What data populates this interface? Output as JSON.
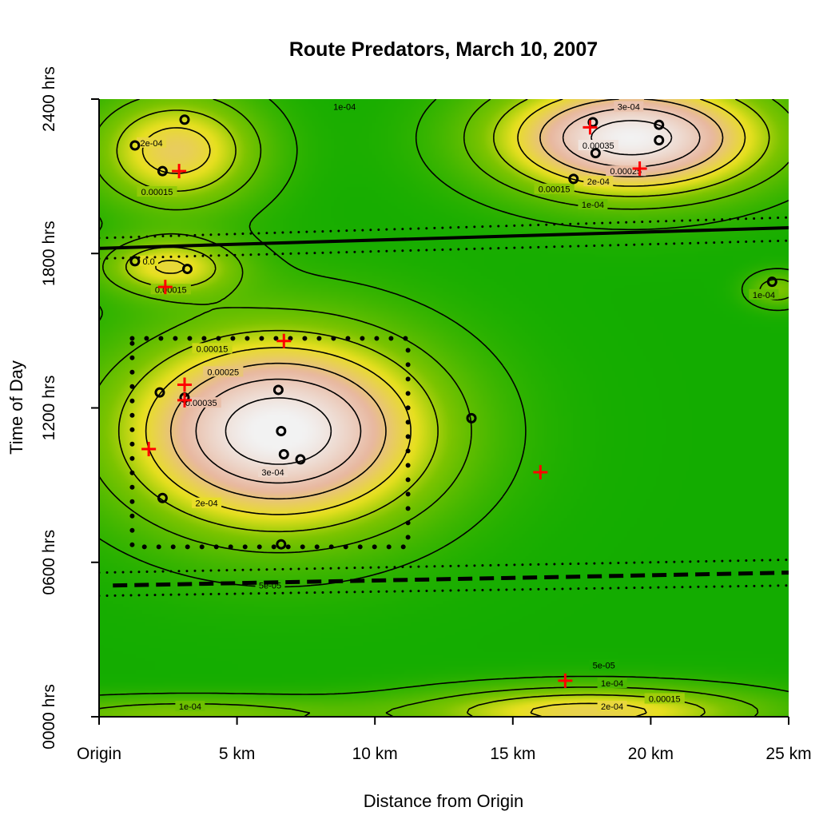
{
  "chart_data": {
    "type": "heatmap",
    "title": "Route Predators, March 10, 2007",
    "xlabel": "Distance from Origin",
    "ylabel": "Time of Day",
    "xlim": [
      0,
      25
    ],
    "ylim": [
      0,
      24
    ],
    "x_ticks": [
      {
        "value": 0,
        "label": "Origin"
      },
      {
        "value": 5,
        "label": "5 km"
      },
      {
        "value": 10,
        "label": "10 km"
      },
      {
        "value": 15,
        "label": "15 km"
      },
      {
        "value": 20,
        "label": "20 km"
      },
      {
        "value": 25,
        "label": "25 km"
      }
    ],
    "y_ticks": [
      {
        "value": 0,
        "label": "0000 hrs"
      },
      {
        "value": 6,
        "label": "0600 hrs"
      },
      {
        "value": 12,
        "label": "1200 hrs"
      },
      {
        "value": 18,
        "label": "1800 hrs"
      },
      {
        "value": 24,
        "label": "2400 hrs"
      }
    ],
    "colors": {
      "low": "#00a800",
      "mid": "#e8e020",
      "high": "#e8b8a0",
      "peak": "#f2f2f2",
      "cross": "#ff0000",
      "ring": "#000000"
    },
    "density_peaks": [
      {
        "x": 6.5,
        "y": 11.1,
        "sx": 4.0,
        "sy": 2.7,
        "amp": 0.00037
      },
      {
        "x": 19.3,
        "y": 22.5,
        "sx": 3.5,
        "sy": 1.6,
        "amp": 0.00036
      },
      {
        "x": 2.8,
        "y": 22.0,
        "sx": 2.2,
        "sy": 1.6,
        "amp": 0.00021
      },
      {
        "x": 2.5,
        "y": 17.5,
        "sx": 1.8,
        "sy": 0.8,
        "amp": 0.00017
      },
      {
        "x": 17.8,
        "y": 0.2,
        "sx": 4.5,
        "sy": 0.7,
        "amp": 0.0002
      },
      {
        "x": 3.0,
        "y": 0.1,
        "sx": 4.5,
        "sy": 0.5,
        "amp": 0.00011
      },
      {
        "x": 24.6,
        "y": 16.6,
        "sx": 0.8,
        "sy": 0.5,
        "amp": 0.00011
      }
    ],
    "contour_labels": [
      {
        "x": 8.9,
        "y": 23.7,
        "text": "1e-04"
      },
      {
        "x": 1.9,
        "y": 22.3,
        "text": "2e-04"
      },
      {
        "x": 2.1,
        "y": 20.4,
        "text": "0.00015"
      },
      {
        "x": 19.2,
        "y": 23.7,
        "text": "3e-04"
      },
      {
        "x": 18.1,
        "y": 22.2,
        "text": "0.00035"
      },
      {
        "x": 19.1,
        "y": 21.2,
        "text": "0.00025"
      },
      {
        "x": 18.1,
        "y": 20.8,
        "text": "2e-04"
      },
      {
        "x": 16.5,
        "y": 20.5,
        "text": "0.00015"
      },
      {
        "x": 17.9,
        "y": 19.9,
        "text": "1e-04"
      },
      {
        "x": 1.8,
        "y": 17.7,
        "text": "0.0"
      },
      {
        "x": 2.6,
        "y": 16.6,
        "text": "0.00015"
      },
      {
        "x": 24.1,
        "y": 16.4,
        "text": "1e-04"
      },
      {
        "x": 4.1,
        "y": 14.3,
        "text": "0.00015"
      },
      {
        "x": 4.5,
        "y": 13.4,
        "text": "0.00025"
      },
      {
        "x": 3.7,
        "y": 12.2,
        "text": "0.00035"
      },
      {
        "x": 6.3,
        "y": 9.5,
        "text": "3e-04"
      },
      {
        "x": 3.9,
        "y": 8.3,
        "text": "2e-04"
      },
      {
        "x": 6.2,
        "y": 5.1,
        "text": "5e-05"
      },
      {
        "x": 18.3,
        "y": 2.0,
        "text": "5e-05"
      },
      {
        "x": 18.6,
        "y": 1.3,
        "text": "1e-04"
      },
      {
        "x": 20.5,
        "y": 0.7,
        "text": "0.00015"
      },
      {
        "x": 18.6,
        "y": 0.4,
        "text": "2e-04"
      },
      {
        "x": 3.3,
        "y": 0.4,
        "text": "1e-04"
      }
    ],
    "series": [
      {
        "name": "",
        "marker": "open-circle",
        "points": [
          [
            3.1,
            23.2
          ],
          [
            1.3,
            22.2
          ],
          [
            2.3,
            21.2
          ],
          [
            17.9,
            23.1
          ],
          [
            20.3,
            23.0
          ],
          [
            20.3,
            22.4
          ],
          [
            18.0,
            21.9
          ],
          [
            17.2,
            20.9
          ],
          [
            1.3,
            17.7
          ],
          [
            3.2,
            17.4
          ],
          [
            24.4,
            16.9
          ],
          [
            2.2,
            12.6
          ],
          [
            6.5,
            12.7
          ],
          [
            3.1,
            12.4
          ],
          [
            13.5,
            11.6
          ],
          [
            6.6,
            11.1
          ],
          [
            6.7,
            10.2
          ],
          [
            7.3,
            10.0
          ],
          [
            2.3,
            8.5
          ],
          [
            6.6,
            6.7
          ]
        ]
      },
      {
        "name": "",
        "marker": "cross",
        "points": [
          [
            2.9,
            21.2
          ],
          [
            17.8,
            22.9
          ],
          [
            19.6,
            21.3
          ],
          [
            2.4,
            16.7
          ],
          [
            6.7,
            14.6
          ],
          [
            3.1,
            12.9
          ],
          [
            3.1,
            12.3
          ],
          [
            1.8,
            10.4
          ],
          [
            16.0,
            9.5
          ],
          [
            16.9,
            1.4
          ]
        ]
      }
    ],
    "lines": [
      {
        "style": "solid",
        "points": [
          [
            0,
            18.2
          ],
          [
            25,
            19.0
          ]
        ]
      },
      {
        "style": "dotted",
        "points": [
          [
            0,
            18.6
          ],
          [
            25,
            19.4
          ]
        ]
      },
      {
        "style": "dotted",
        "points": [
          [
            0,
            17.8
          ],
          [
            25,
            18.5
          ]
        ]
      },
      {
        "style": "dashed",
        "points": [
          [
            0.5,
            5.1
          ],
          [
            25,
            5.6
          ]
        ]
      },
      {
        "style": "dotted",
        "points": [
          [
            0,
            5.6
          ],
          [
            25,
            6.1
          ]
        ]
      },
      {
        "style": "dotted",
        "points": [
          [
            0,
            4.7
          ],
          [
            25,
            5.1
          ]
        ]
      }
    ],
    "rectangle": {
      "style": "dotted",
      "x": [
        1.2,
        11.2
      ],
      "y": [
        6.6,
        14.7
      ]
    },
    "grid": false,
    "legend": "none"
  }
}
